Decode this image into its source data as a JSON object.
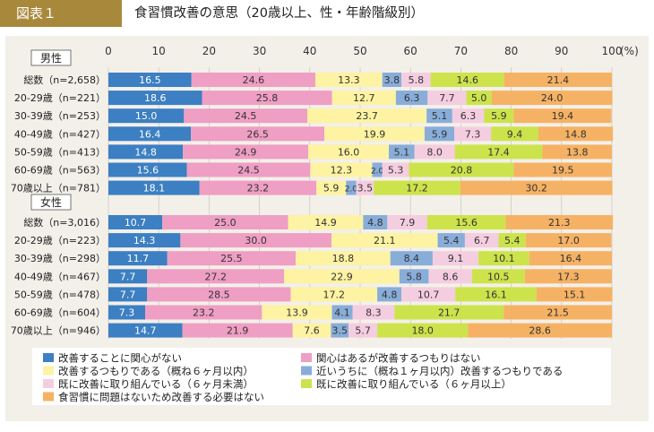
{
  "header": {
    "tag": "図表１",
    "title": "食習慣改善の意思（20歳以上、性・年齢階級別）"
  },
  "colors": {
    "header_bg": "#a8893c",
    "panel_bg": "#f3f0ea"
  },
  "chart_data": {
    "type": "bar",
    "orientation": "horizontal",
    "stacked": true,
    "xlim": [
      0,
      100
    ],
    "x_ticks": [
      "0",
      "10",
      "20",
      "30",
      "40",
      "50",
      "60",
      "70",
      "80",
      "90",
      "100"
    ],
    "x_unit": "(%)",
    "grid": true,
    "legend_position": "bottom",
    "series": [
      {
        "name": "改善することに関心がない",
        "color": "#3c7fc2"
      },
      {
        "name": "関心はあるが改善するつもりはない",
        "color": "#ef9ec4"
      },
      {
        "name": "改善するつもりである（概ね６ヶ月以内）",
        "color": "#fdf3a2"
      },
      {
        "name": "近いうちに（概ね１ヶ月以内）改善するつもりである",
        "color": "#88add9"
      },
      {
        "name": "既に改善に取り組んでいる（６ヶ月未満）",
        "color": "#f5cde0"
      },
      {
        "name": "既に改善に取り組んでいる（６ヶ月以上）",
        "color": "#cde34b"
      },
      {
        "name": "食習慣に問題はないため改善する必要はない",
        "color": "#f6b264"
      }
    ],
    "groups": [
      {
        "name": "男性",
        "rows": [
          {
            "label": "総数（n=2,658）",
            "values": [
              16.5,
              24.6,
              13.3,
              3.8,
              5.8,
              14.6,
              21.4
            ],
            "value_labels": [
              "16.5",
              "24.6",
              "13.3",
              "3.8",
              "5.8",
              "14.6",
              "21.4"
            ]
          },
          {
            "label": "20-29歳（n=221）",
            "values": [
              18.6,
              25.8,
              12.7,
              6.3,
              7.7,
              5.0,
              24.0
            ],
            "value_labels": [
              "18.6",
              "25.8",
              "12.7",
              "6.3",
              "7.7",
              "5.0",
              "24.0"
            ]
          },
          {
            "label": "30-39歳（n=253）",
            "values": [
              15.0,
              24.5,
              23.7,
              5.1,
              6.3,
              5.9,
              19.4
            ],
            "value_labels": [
              "15.0",
              "24.5",
              "23.7",
              "5.1",
              "6.3",
              "5.9",
              "19.4"
            ]
          },
          {
            "label": "40-49歳（n=427）",
            "values": [
              16.4,
              26.5,
              19.9,
              5.9,
              7.3,
              9.4,
              14.8
            ],
            "value_labels": [
              "16.4",
              "26.5",
              "19.9",
              "5.9",
              "7.3",
              "9.4",
              "14.8"
            ]
          },
          {
            "label": "50-59歳（n=413）",
            "values": [
              14.8,
              24.9,
              16.0,
              5.1,
              8.0,
              17.4,
              13.8
            ],
            "value_labels": [
              "14.8",
              "24.9",
              "16.0",
              "5.1",
              "8.0",
              "17.4",
              "13.8"
            ]
          },
          {
            "label": "60-69歳（n=563）",
            "values": [
              15.6,
              24.5,
              12.3,
              2.0,
              5.3,
              20.8,
              19.5
            ],
            "value_labels": [
              "15.6",
              "24.5",
              "12.3",
              "2.0",
              "5.3",
              "20.8",
              "19.5"
            ]
          },
          {
            "label": "70歳以上（n=781）",
            "values": [
              18.1,
              23.2,
              5.9,
              2.0,
              3.5,
              17.2,
              30.2
            ],
            "value_labels": [
              "18.1",
              "23.2",
              "5.9",
              "2.0",
              "3.5",
              "17.2",
              "30.2"
            ]
          }
        ]
      },
      {
        "name": "女性",
        "rows": [
          {
            "label": "総数（n=3,016）",
            "values": [
              10.7,
              25.0,
              14.9,
              4.8,
              7.9,
              15.6,
              21.3
            ],
            "value_labels": [
              "10.7",
              "25.0",
              "14.9",
              "4.8",
              "7.9",
              "15.6",
              "21.3"
            ]
          },
          {
            "label": "20-29歳（n=223）",
            "values": [
              14.3,
              30.0,
              21.1,
              5.4,
              6.7,
              5.4,
              17.0
            ],
            "value_labels": [
              "14.3",
              "30.0",
              "21.1",
              "5.4",
              "6.7",
              "5.4",
              "17.0"
            ]
          },
          {
            "label": "30-39歳（n=298）",
            "values": [
              11.7,
              25.5,
              18.8,
              8.4,
              9.1,
              10.1,
              16.4
            ],
            "value_labels": [
              "11.7",
              "25.5",
              "18.8",
              "8.4",
              "9.1",
              "10.1",
              "16.4"
            ]
          },
          {
            "label": "40-49歳（n=467）",
            "values": [
              7.7,
              27.2,
              22.9,
              5.8,
              8.6,
              10.5,
              17.3
            ],
            "value_labels": [
              "7.7",
              "27.2",
              "22.9",
              "5.8",
              "8.6",
              "10.5",
              "17.3"
            ]
          },
          {
            "label": "50-59歳（n=478）",
            "values": [
              7.7,
              28.5,
              17.2,
              4.8,
              10.7,
              16.1,
              15.1
            ],
            "value_labels": [
              "7.7",
              "28.5",
              "17.2",
              "4.8",
              "10.7",
              "16.1",
              "15.1"
            ]
          },
          {
            "label": "60-69歳（n=604）",
            "values": [
              7.3,
              23.2,
              13.9,
              4.1,
              8.3,
              21.7,
              21.5
            ],
            "value_labels": [
              "7.3",
              "23.2",
              "13.9",
              "4.1",
              "8.3",
              "21.7",
              "21.5"
            ]
          },
          {
            "label": "70歳以上（n=946）",
            "values": [
              14.7,
              21.9,
              7.6,
              3.5,
              5.7,
              18.0,
              28.6
            ],
            "value_labels": [
              "14.7",
              "21.9",
              "7.6",
              "3.5",
              "5.7",
              "18.0",
              "28.6"
            ]
          }
        ]
      }
    ]
  }
}
